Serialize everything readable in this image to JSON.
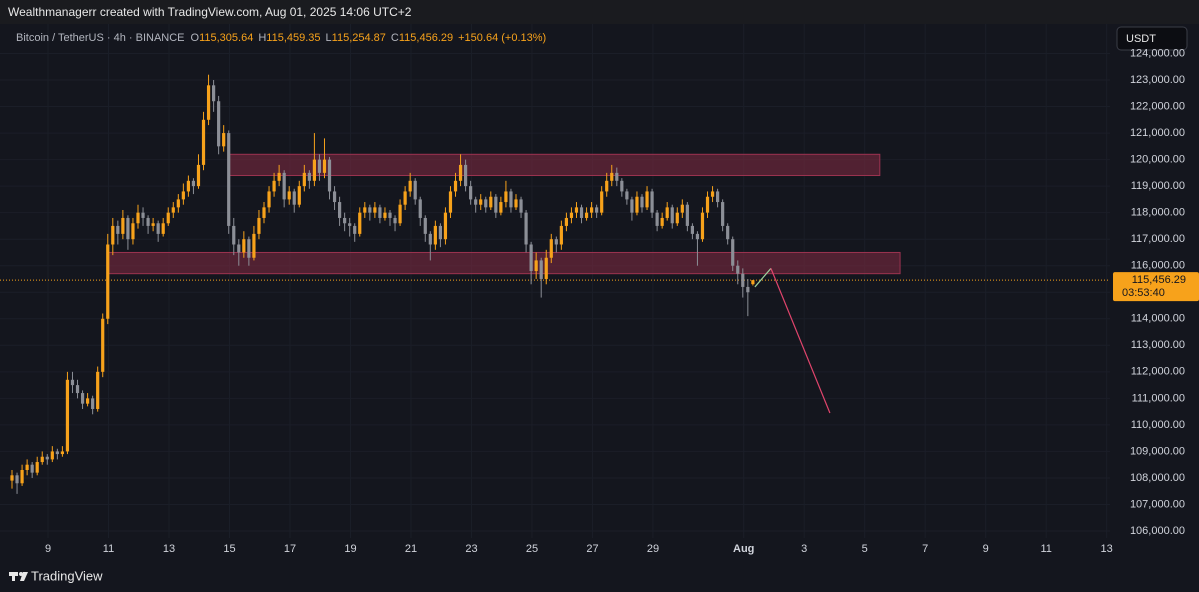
{
  "header": {
    "credit": "Wealthmanagerr created with TradingView.com, Aug 01, 2025 14:06 UTC+2"
  },
  "footer": {
    "brand": "TradingView"
  },
  "chart_data": {
    "type": "candlestick",
    "symbol": "Bitcoin / TetherUS · 4h · BINANCE",
    "legend": [
      {
        "key": "O",
        "value": "115,305.64"
      },
      {
        "key": "H",
        "value": "115,459.35"
      },
      {
        "key": "L",
        "value": "115,254.87"
      },
      {
        "key": "C",
        "value": "115,456.29"
      }
    ],
    "change": "+150.64 (+0.13%)",
    "currency": "USDT",
    "last_price": {
      "value": 115456.29,
      "label": "115,456.29"
    },
    "countdown": "03:53:40",
    "up_color": "#f7a21b",
    "down_color": "#8c8f97",
    "grid": true,
    "xlim": [
      7.413,
      44.11
    ],
    "xticks": [
      9,
      11,
      13,
      15,
      17,
      19,
      21,
      23,
      25,
      27,
      29,
      {
        "value": 32,
        "label": "Aug"
      },
      {
        "value": 34,
        "label": "3"
      },
      {
        "value": 36,
        "label": "5"
      },
      {
        "value": 38,
        "label": "7"
      },
      {
        "value": 40,
        "label": "9"
      },
      {
        "value": 42,
        "label": "11"
      },
      {
        "value": 44,
        "label": "13"
      }
    ],
    "ylim": [
      105737,
      125111
    ],
    "yticks": [
      {
        "value": 106000,
        "label": "106,000.00"
      },
      {
        "value": 107000,
        "label": "107,000.00"
      },
      {
        "value": 108000,
        "label": "108,000.00"
      },
      {
        "value": 109000,
        "label": "109,000.00"
      },
      {
        "value": 110000,
        "label": "110,000.00"
      },
      {
        "value": 111000,
        "label": "111,000.00"
      },
      {
        "value": 112000,
        "label": "112,000.00"
      },
      {
        "value": 113000,
        "label": "113,000.00"
      },
      {
        "value": 114000,
        "label": "114,000.00"
      },
      {
        "value": 115000,
        "label": "115,000.00"
      },
      {
        "value": 116000,
        "label": "116,000.00"
      },
      {
        "value": 117000,
        "label": "117,000.00"
      },
      {
        "value": 118000,
        "label": "118,000.00"
      },
      {
        "value": 119000,
        "label": "119,000.00"
      },
      {
        "value": 120000,
        "label": "120,000.00"
      },
      {
        "value": 121000,
        "label": "121,000.00"
      },
      {
        "value": 122000,
        "label": "122,000.00"
      },
      {
        "value": 123000,
        "label": "123,000.00"
      },
      {
        "value": 124000,
        "label": "124,000.00"
      }
    ],
    "zones": [
      {
        "x": [
          10.98,
          37.17
        ],
        "y": [
          115700,
          116500
        ],
        "color": "#7a2a3f"
      },
      {
        "x": [
          14.95,
          36.5
        ],
        "y": [
          119400,
          120200
        ],
        "color": "#7a2a3f"
      }
    ],
    "projection": [
      {
        "x": [
          32.37,
          32.9
        ],
        "y": [
          115200,
          115900
        ],
        "color": "#9fd39f"
      },
      {
        "x": [
          32.9,
          34.85
        ],
        "y": [
          115900,
          110450
        ],
        "color": "#e0446c"
      }
    ],
    "ohlc": [
      [
        107900,
        108300,
        107600,
        108100
      ],
      [
        108100,
        108200,
        107400,
        107800
      ],
      [
        107800,
        108500,
        107700,
        108300
      ],
      [
        108300,
        108700,
        108100,
        108500
      ],
      [
        108500,
        108600,
        108000,
        108200
      ],
      [
        108200,
        108800,
        108100,
        108600
      ],
      [
        108600,
        109000,
        108500,
        108800
      ],
      [
        108800,
        108900,
        108500,
        108700
      ],
      [
        108700,
        109200,
        108600,
        109000
      ],
      [
        109000,
        109100,
        108700,
        108900
      ],
      [
        108900,
        109200,
        108800,
        109000
      ],
      [
        109000,
        112000,
        108900,
        111700
      ],
      [
        111700,
        112000,
        111200,
        111500
      ],
      [
        111500,
        111700,
        111000,
        111200
      ],
      [
        111200,
        111300,
        110600,
        110800
      ],
      [
        110800,
        111200,
        110700,
        111000
      ],
      [
        111000,
        111100,
        110400,
        110600
      ],
      [
        110600,
        112200,
        110500,
        112000
      ],
      [
        112000,
        114200,
        111800,
        114000
      ],
      [
        114000,
        117200,
        113800,
        116800
      ],
      [
        116800,
        117800,
        116400,
        117500
      ],
      [
        117500,
        117700,
        116800,
        117200
      ],
      [
        117200,
        118100,
        117000,
        117800
      ],
      [
        117800,
        117900,
        116600,
        117000
      ],
      [
        117000,
        117800,
        116800,
        117600
      ],
      [
        117600,
        118300,
        117400,
        118000
      ],
      [
        118000,
        118200,
        117500,
        117800
      ],
      [
        117800,
        117900,
        117200,
        117500
      ],
      [
        117500,
        117800,
        117300,
        117600
      ],
      [
        117600,
        117700,
        116900,
        117200
      ],
      [
        117200,
        117800,
        117100,
        117600
      ],
      [
        117600,
        118200,
        117500,
        118000
      ],
      [
        118000,
        118400,
        117800,
        118200
      ],
      [
        118200,
        118700,
        118000,
        118500
      ],
      [
        118500,
        119100,
        118300,
        118800
      ],
      [
        118800,
        119400,
        118600,
        119200
      ],
      [
        119200,
        119300,
        118700,
        119000
      ],
      [
        119000,
        120200,
        118900,
        119800
      ],
      [
        119800,
        121800,
        119600,
        121500
      ],
      [
        121500,
        123200,
        121300,
        122800
      ],
      [
        122800,
        123000,
        121800,
        122200
      ],
      [
        122200,
        122400,
        120200,
        120500
      ],
      [
        120500,
        121300,
        120300,
        121000
      ],
      [
        121000,
        121100,
        117200,
        117500
      ],
      [
        117500,
        117800,
        116400,
        116800
      ],
      [
        116800,
        117000,
        116000,
        116500
      ],
      [
        116500,
        117300,
        116300,
        117000
      ],
      [
        117000,
        117100,
        116000,
        116300
      ],
      [
        116300,
        117500,
        116200,
        117200
      ],
      [
        117200,
        118100,
        117000,
        117800
      ],
      [
        117800,
        118400,
        117600,
        118200
      ],
      [
        118200,
        119000,
        118000,
        118800
      ],
      [
        118800,
        119500,
        118600,
        119200
      ],
      [
        119200,
        119800,
        119000,
        119500
      ],
      [
        119500,
        119600,
        118200,
        118500
      ],
      [
        118500,
        119000,
        118300,
        118800
      ],
      [
        118800,
        118900,
        118000,
        118300
      ],
      [
        118300,
        119200,
        118200,
        119000
      ],
      [
        119000,
        119800,
        118800,
        119500
      ],
      [
        119500,
        119600,
        118900,
        119200
      ],
      [
        119200,
        121000,
        119000,
        120000
      ],
      [
        120000,
        120200,
        119200,
        119500
      ],
      [
        119500,
        120800,
        119300,
        120000
      ],
      [
        120000,
        120100,
        118500,
        118800
      ],
      [
        118800,
        119000,
        118100,
        118400
      ],
      [
        118400,
        118600,
        117500,
        117800
      ],
      [
        117800,
        118000,
        117300,
        117600
      ],
      [
        117600,
        117800,
        117100,
        117500
      ],
      [
        117500,
        117600,
        116900,
        117200
      ],
      [
        117200,
        118200,
        117100,
        118000
      ],
      [
        118000,
        118400,
        117800,
        118200
      ],
      [
        118200,
        118300,
        117700,
        118000
      ],
      [
        118000,
        118400,
        117800,
        118200
      ],
      [
        118200,
        118300,
        117600,
        117800
      ],
      [
        117800,
        118200,
        117700,
        118000
      ],
      [
        118000,
        118100,
        117500,
        117800
      ],
      [
        117800,
        117900,
        117300,
        117600
      ],
      [
        117600,
        118500,
        117500,
        118300
      ],
      [
        118300,
        119000,
        118100,
        118800
      ],
      [
        118800,
        119500,
        118600,
        119200
      ],
      [
        119200,
        119300,
        118300,
        118500
      ],
      [
        118500,
        118600,
        117500,
        117800
      ],
      [
        117800,
        117900,
        116900,
        117200
      ],
      [
        117200,
        117300,
        116200,
        116800
      ],
      [
        116800,
        117700,
        116600,
        117500
      ],
      [
        117500,
        117600,
        116700,
        117000
      ],
      [
        117000,
        118200,
        116800,
        118000
      ],
      [
        118000,
        119000,
        117800,
        118800
      ],
      [
        118800,
        119500,
        118600,
        119200
      ],
      [
        119200,
        120200,
        119000,
        119800
      ],
      [
        119800,
        120000,
        118800,
        119000
      ],
      [
        119000,
        119200,
        118300,
        118500
      ],
      [
        118500,
        118600,
        118000,
        118300
      ],
      [
        118300,
        118700,
        118100,
        118500
      ],
      [
        118500,
        118600,
        118000,
        118200
      ],
      [
        118200,
        118800,
        118100,
        118600
      ],
      [
        118600,
        118700,
        117800,
        118000
      ],
      [
        118000,
        118600,
        117900,
        118400
      ],
      [
        118400,
        119200,
        118200,
        118800
      ],
      [
        118800,
        118900,
        118000,
        118200
      ],
      [
        118200,
        118700,
        118100,
        118500
      ],
      [
        118500,
        118600,
        117800,
        118000
      ],
      [
        118000,
        118100,
        116500,
        116800
      ],
      [
        116800,
        116900,
        115300,
        115800
      ],
      [
        115800,
        116500,
        115500,
        116200
      ],
      [
        116200,
        116300,
        114800,
        115500
      ],
      [
        115500,
        116600,
        115300,
        116300
      ],
      [
        116300,
        117200,
        116100,
        117000
      ],
      [
        117000,
        117100,
        116500,
        116800
      ],
      [
        116800,
        117700,
        116600,
        117500
      ],
      [
        117500,
        118000,
        117300,
        117800
      ],
      [
        117800,
        118200,
        117600,
        118000
      ],
      [
        118000,
        118400,
        117800,
        118200
      ],
      [
        118200,
        118300,
        117600,
        117800
      ],
      [
        117800,
        118200,
        117700,
        118000
      ],
      [
        118000,
        118400,
        117800,
        118200
      ],
      [
        118200,
        118300,
        117800,
        118000
      ],
      [
        118000,
        119000,
        117900,
        118800
      ],
      [
        118800,
        119500,
        118600,
        119200
      ],
      [
        119200,
        119800,
        119000,
        119500
      ],
      [
        119500,
        119700,
        119000,
        119200
      ],
      [
        119200,
        119300,
        118600,
        118800
      ],
      [
        118800,
        118900,
        118300,
        118500
      ],
      [
        118500,
        118600,
        117700,
        118000
      ],
      [
        118000,
        118800,
        117900,
        118600
      ],
      [
        118600,
        118700,
        118000,
        118200
      ],
      [
        118200,
        119000,
        118100,
        118800
      ],
      [
        118800,
        118900,
        117800,
        118000
      ],
      [
        118000,
        118100,
        117300,
        117500
      ],
      [
        117500,
        118000,
        117400,
        117800
      ],
      [
        117800,
        118400,
        117700,
        118200
      ],
      [
        118200,
        118300,
        117400,
        117600
      ],
      [
        117600,
        118200,
        117500,
        118000
      ],
      [
        118000,
        118500,
        117800,
        118300
      ],
      [
        118300,
        118400,
        117300,
        117500
      ],
      [
        117500,
        117600,
        117000,
        117200
      ],
      [
        117200,
        117300,
        116000,
        117000
      ],
      [
        117000,
        118200,
        116900,
        118000
      ],
      [
        118000,
        118800,
        117800,
        118600
      ],
      [
        118600,
        119000,
        118400,
        118800
      ],
      [
        118800,
        118900,
        118200,
        118400
      ],
      [
        118400,
        118500,
        117300,
        117500
      ],
      [
        117500,
        117600,
        116800,
        117000
      ],
      [
        117000,
        117100,
        115800,
        116000
      ],
      [
        116000,
        116200,
        115300,
        115700
      ],
      [
        115700,
        115900,
        114800,
        115200
      ],
      [
        115200,
        115500,
        114100,
        115000
      ],
      [
        115305.64,
        115459.35,
        115254.87,
        115456.29
      ]
    ]
  }
}
